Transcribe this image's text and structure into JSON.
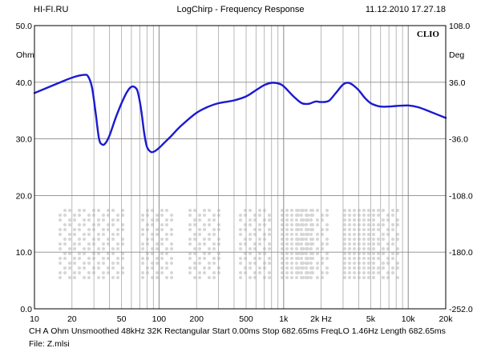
{
  "header": {
    "left": "HI-FI.RU",
    "center": "LogChirp - Frequency Response",
    "right": "11.12.2010 17.27.18"
  },
  "watermark": {
    "text": "HI-FI.RU"
  },
  "chart_data": {
    "type": "line",
    "title": "LogChirp - Frequency Response",
    "xscale": "log",
    "xlim": [
      10,
      20000
    ],
    "ylim": [
      0,
      50
    ],
    "y2lim": [
      -252,
      108
    ],
    "grid": true,
    "logo": "CLIO",
    "left_unit": "Ohm",
    "right_unit": "Deg",
    "x_ticks": [
      {
        "v": 10,
        "label": "10"
      },
      {
        "v": 20,
        "label": "20"
      },
      {
        "v": 50,
        "label": "50"
      },
      {
        "v": 100,
        "label": "100"
      },
      {
        "v": 200,
        "label": "200"
      },
      {
        "v": 500,
        "label": "500"
      },
      {
        "v": 1000,
        "label": "1k"
      },
      {
        "v": 2000,
        "label": "2k Hz"
      },
      {
        "v": 5000,
        "label": "5k"
      },
      {
        "v": 10000,
        "label": "10k"
      },
      {
        "v": 20000,
        "label": "20k"
      }
    ],
    "y_ticks": [
      {
        "v": 0,
        "label": "0.0"
      },
      {
        "v": 10,
        "label": "10.0"
      },
      {
        "v": 20,
        "label": "20.0"
      },
      {
        "v": 30,
        "label": "30.0"
      },
      {
        "v": 40,
        "label": "40.0"
      },
      {
        "v": 50,
        "label": "50.0"
      }
    ],
    "y2_ticks": [
      {
        "v": -252,
        "label": "-252.0"
      },
      {
        "v": -180,
        "label": "-180.0"
      },
      {
        "v": -108,
        "label": "-108.0"
      },
      {
        "v": -36,
        "label": "-36.0"
      },
      {
        "v": 36,
        "label": "36.0"
      },
      {
        "v": 108,
        "label": "108.0"
      }
    ],
    "series": [
      {
        "color": "#1a1ad0",
        "x": [
          10,
          15,
          20,
          25,
          27,
          29,
          31,
          33,
          35,
          37,
          40,
          45,
          50,
          55,
          60,
          65,
          68,
          72,
          76,
          80,
          86,
          92,
          100,
          110,
          125,
          150,
          200,
          250,
          300,
          400,
          500,
          600,
          700,
          800,
          900,
          1000,
          1200,
          1400,
          1600,
          1800,
          2000,
          2300,
          2600,
          3000,
          3300,
          3600,
          4000,
          4500,
          5000,
          5500,
          6000,
          7000,
          8000,
          10000,
          12000,
          15000,
          20000
        ],
        "y": [
          38.1,
          39.7,
          40.8,
          41.3,
          41.0,
          39.0,
          34.5,
          30.0,
          29.0,
          29.2,
          30.6,
          33.8,
          36.3,
          38.2,
          39.2,
          39.0,
          38.0,
          35.0,
          31.0,
          28.6,
          27.7,
          27.8,
          28.4,
          29.3,
          30.5,
          32.3,
          34.6,
          35.7,
          36.3,
          36.8,
          37.5,
          38.6,
          39.5,
          39.9,
          39.8,
          39.3,
          37.5,
          36.3,
          36.2,
          36.6,
          36.5,
          36.7,
          38.0,
          39.6,
          39.9,
          39.5,
          38.6,
          37.2,
          36.3,
          35.9,
          35.7,
          35.7,
          35.8,
          35.9,
          35.6,
          34.8,
          33.7
        ]
      }
    ]
  },
  "footer": {
    "items": [
      "CH A",
      "Ohm",
      "Unsmoothed",
      "48kHz",
      "32K",
      "Rectangular",
      "Start 0.00ms",
      "Stop 682.65ms",
      "FreqLO 1.46Hz",
      "Length 682.65ms"
    ],
    "file": "File: Z.mlsi"
  }
}
